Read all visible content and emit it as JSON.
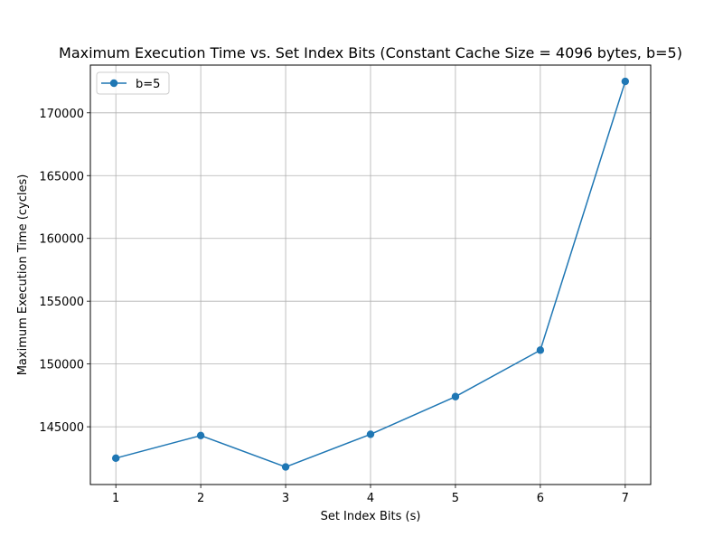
{
  "chart_data": {
    "type": "line",
    "title": "Maximum Execution Time vs. Set Index Bits (Constant Cache Size = 4096 bytes, b=5)",
    "xlabel": "Set Index Bits (s)",
    "ylabel": "Maximum Execution Time (cycles)",
    "x": [
      1,
      2,
      3,
      4,
      5,
      6,
      7
    ],
    "xticks": [
      "1",
      "2",
      "3",
      "4",
      "5",
      "6",
      "7"
    ],
    "yticks": [
      "145000",
      "150000",
      "155000",
      "160000",
      "165000",
      "170000"
    ],
    "xlim": [
      0.7,
      7.3
    ],
    "ylim": [
      140400,
      173800
    ],
    "grid": true,
    "legend_position": "top-left",
    "series": [
      {
        "name": "b=5",
        "color": "#1f77b4",
        "marker": "circle",
        "values": [
          142500,
          144300,
          141800,
          144400,
          147400,
          151100,
          172500
        ]
      }
    ]
  }
}
